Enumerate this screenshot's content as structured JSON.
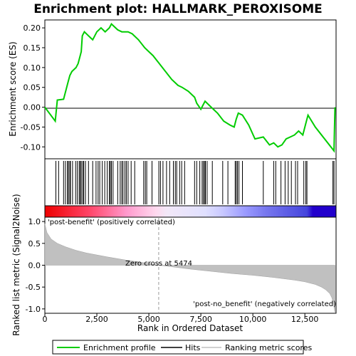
{
  "chart_data": [
    {
      "type": "line",
      "title": "Enrichment plot: HALLMARK_PEROXISOME",
      "ylabel": "Enrichment score (ES)",
      "ylim": [
        -0.13,
        0.22
      ],
      "yticks": [
        -0.1,
        -0.05,
        0.0,
        0.05,
        0.1,
        0.15,
        0.2
      ],
      "ytick_labels": [
        "-0.10",
        "-0.05",
        "0.00",
        "0.05",
        "0.10",
        "0.15",
        "0.20"
      ],
      "xlim": [
        0,
        14000
      ],
      "series": [
        {
          "name": "Enrichment profile",
          "color": "#00cc00",
          "x": [
            0,
            500,
            600,
            900,
            1000,
            1100,
            1200,
            1300,
            1500,
            1600,
            1750,
            1800,
            1900,
            2100,
            2300,
            2500,
            2700,
            2900,
            3100,
            3200,
            3300,
            3500,
            3700,
            3800,
            3900,
            4000,
            4200,
            4500,
            4800,
            5000,
            5200,
            5500,
            5800,
            6100,
            6400,
            6600,
            6900,
            7200,
            7300,
            7500,
            7700,
            7800,
            8000,
            8300,
            8600,
            8900,
            9100,
            9200,
            9300,
            9500,
            9800,
            10100,
            10500,
            10800,
            11000,
            11200,
            11400,
            11600,
            11800,
            12000,
            12200,
            12400,
            12500,
            12600,
            12650,
            13000,
            13900,
            13920,
            13950
          ],
          "y": [
            0.0,
            -0.035,
            0.018,
            0.02,
            0.04,
            0.06,
            0.08,
            0.09,
            0.1,
            0.11,
            0.14,
            0.18,
            0.19,
            0.18,
            0.17,
            0.19,
            0.2,
            0.19,
            0.2,
            0.21,
            0.205,
            0.195,
            0.19,
            0.19,
            0.19,
            0.19,
            0.185,
            0.17,
            0.15,
            0.14,
            0.13,
            0.11,
            0.09,
            0.07,
            0.055,
            0.05,
            0.04,
            0.025,
            0.01,
            -0.005,
            0.015,
            0.01,
            0.0,
            -0.015,
            -0.035,
            -0.045,
            -0.05,
            -0.03,
            -0.015,
            -0.02,
            -0.045,
            -0.08,
            -0.075,
            -0.095,
            -0.09,
            -0.1,
            -0.095,
            -0.08,
            -0.075,
            -0.07,
            -0.06,
            -0.07,
            -0.05,
            -0.03,
            -0.02,
            -0.05,
            -0.11,
            -0.06,
            0.0
          ]
        }
      ]
    },
    {
      "type": "scatter",
      "name": "Hits",
      "positions": [
        530,
        660,
        900,
        990,
        1090,
        1130,
        1200,
        1230,
        1330,
        1480,
        1560,
        1650,
        1700,
        1750,
        1820,
        1870,
        1950,
        2100,
        2300,
        2460,
        2560,
        2640,
        2760,
        2880,
        3000,
        3100,
        3150,
        3200,
        3280,
        3500,
        3620,
        3700,
        3760,
        3850,
        3920,
        4000,
        4150,
        4320,
        4750,
        4830,
        4900,
        5150,
        5480,
        5560,
        5680,
        5850,
        6000,
        6180,
        6270,
        6340,
        6480,
        6580,
        6720,
        7200,
        7300,
        7450,
        7560,
        7620,
        7680,
        7720,
        7800,
        8050,
        8550,
        8800,
        9150,
        9200,
        9260,
        9330,
        9500,
        10500,
        11000,
        11100,
        11350,
        11550,
        11700,
        11850,
        12050,
        12150,
        12450,
        12550,
        12600,
        13850,
        13900
      ]
    },
    {
      "type": "area",
      "name": "Ranking metric scores",
      "ylabel": "Ranked list metric (Signal2Noise)",
      "xlabel": "Rank in Ordered Dataset",
      "ylim": [
        -1.1,
        1.1
      ],
      "yticks": [
        -1.0,
        -0.5,
        0.0,
        0.5,
        1.0
      ],
      "ytick_labels": [
        "-1.0",
        "-0.5",
        "0.0",
        "0.5",
        "1.0"
      ],
      "xlim": [
        0,
        14000
      ],
      "xticks": [
        0,
        2500,
        5000,
        7500,
        10000,
        12500
      ],
      "xtick_labels": [
        "0",
        "2,500",
        "5,000",
        "7,500",
        "10,000",
        "12,500"
      ],
      "x": [
        0,
        100,
        300,
        600,
        1000,
        1500,
        2000,
        3000,
        4000,
        5000,
        5474,
        6000,
        7000,
        8000,
        9000,
        10000,
        11000,
        12000,
        12500,
        13000,
        13300,
        13500,
        13700,
        13800,
        13900,
        13950
      ],
      "y": [
        0.95,
        0.75,
        0.6,
        0.5,
        0.42,
        0.34,
        0.28,
        0.19,
        0.11,
        0.04,
        0.0,
        -0.03,
        -0.09,
        -0.14,
        -0.19,
        -0.23,
        -0.28,
        -0.34,
        -0.38,
        -0.44,
        -0.5,
        -0.56,
        -0.65,
        -0.75,
        -0.95,
        -1.1
      ],
      "annotations": [
        "'post-benefit' (positively correlated)",
        "Zero cross at 5474",
        "'post-no_benefit' (negatively correlated)"
      ],
      "zero_cross": 5474
    }
  ],
  "legend": {
    "items": [
      {
        "label": "Enrichment profile",
        "color": "#00cc00"
      },
      {
        "label": "Hits",
        "color": "#000000"
      },
      {
        "label": "Ranking metric scores",
        "color": "#c0c0c0"
      }
    ]
  }
}
